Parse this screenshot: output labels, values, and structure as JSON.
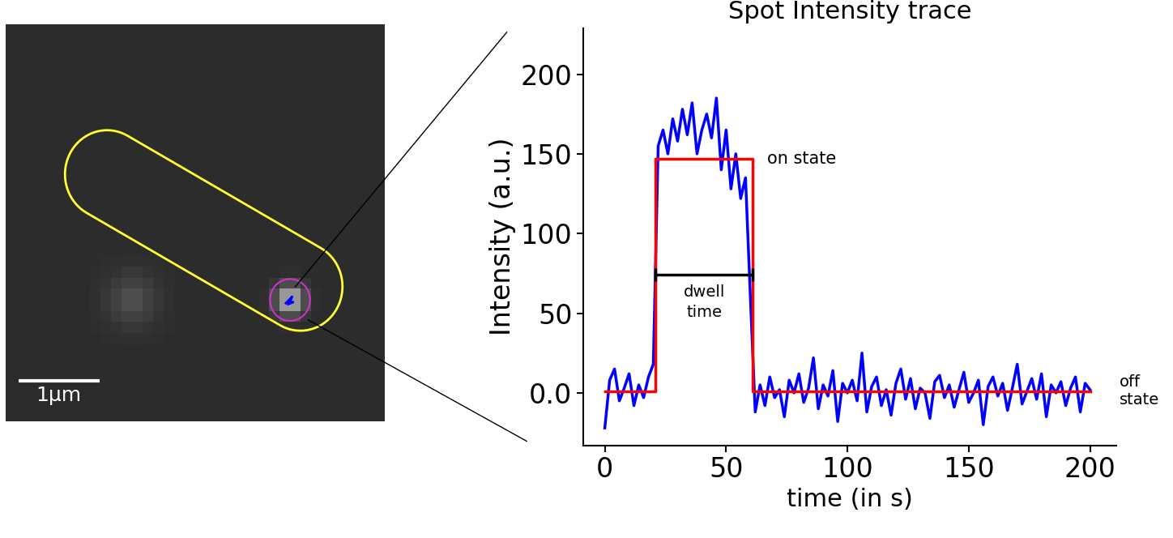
{
  "chart_data": {
    "type": "line",
    "title": "Spot Intensity trace",
    "x_label": "time (in s)",
    "y_label": "Intensity (a.u.)",
    "xlim": [
      -9,
      211
    ],
    "ylim": [
      -33,
      229
    ],
    "xticks": [
      0,
      50,
      100,
      150,
      200
    ],
    "yticks": [
      {
        "value": 0,
        "label": "0.0"
      },
      50,
      100,
      150,
      200
    ],
    "grid": false,
    "series": [
      {
        "color": "#0000ff",
        "line_style": "solid",
        "x": [
          0,
          2,
          4,
          6,
          8,
          10,
          12,
          14,
          16,
          18,
          20,
          22,
          24,
          26,
          28,
          30,
          32,
          34,
          36,
          38,
          40,
          42,
          44,
          46,
          48,
          50,
          52,
          54,
          56,
          58,
          60,
          62,
          64,
          66,
          68,
          70,
          72,
          74,
          76,
          78,
          80,
          82,
          84,
          86,
          88,
          90,
          92,
          94,
          96,
          98,
          100,
          102,
          104,
          106,
          108,
          110,
          112,
          114,
          116,
          118,
          120,
          122,
          124,
          126,
          128,
          130,
          132,
          134,
          136,
          138,
          140,
          142,
          144,
          146,
          148,
          150,
          152,
          154,
          156,
          158,
          160,
          162,
          164,
          166,
          168,
          170,
          172,
          174,
          176,
          178,
          180,
          182,
          184,
          186,
          188,
          190,
          192,
          194,
          196,
          198,
          200
        ],
        "values": [
          -22,
          8,
          15,
          -5,
          3,
          12,
          -8,
          5,
          -3,
          10,
          18,
          155,
          165,
          150,
          172,
          158,
          178,
          162,
          182,
          150,
          165,
          175,
          160,
          185,
          140,
          165,
          128,
          150,
          122,
          135,
          60,
          -12,
          5,
          -8,
          10,
          -3,
          2,
          -15,
          8,
          0,
          12,
          -6,
          3,
          22,
          -10,
          5,
          -2,
          14,
          -18,
          6,
          0,
          8,
          -5,
          25,
          -12,
          4,
          10,
          -8,
          2,
          -14,
          6,
          15,
          -4,
          9,
          -10,
          3,
          0,
          -16,
          7,
          11,
          -3,
          5,
          -9,
          2,
          13,
          -6,
          0,
          8,
          -20,
          4,
          10,
          -2,
          6,
          -11,
          3,
          18,
          -7,
          1,
          9,
          -4,
          12,
          -15,
          5,
          0,
          7,
          -8,
          3,
          10,
          -12,
          6,
          2
        ]
      },
      {
        "color": "#ff0000",
        "line_style": "solid",
        "x": [
          0,
          21,
          21,
          61,
          61,
          200
        ],
        "values": [
          1,
          1,
          147,
          147,
          1,
          1
        ]
      }
    ],
    "states": [
      {
        "label": "on state",
        "level": 147
      },
      {
        "label": "off\nstate",
        "level": 1
      }
    ],
    "dwell_time": {
      "label": "dwell\ntime",
      "start": 21,
      "end": 61
    },
    "image": {
      "shape": [
        36,
        36
      ],
      "range": [
        0,
        255
      ],
      "background": 45,
      "spots": [
        {
          "x": 26.5,
          "y": 24.5,
          "peak": 190,
          "sigma_px": 0.9
        },
        {
          "x": 11.5,
          "y": 24.5,
          "peak": 80,
          "sigma_px": 1.6
        }
      ],
      "pixel_size_um": 0.13,
      "scale_bar": {
        "label": "1μm",
        "length_um": 1
      }
    }
  }
}
